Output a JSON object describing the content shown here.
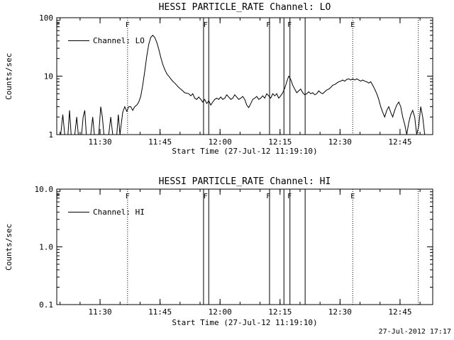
{
  "meta": {
    "timestamp": "27-Jul-2012 17:17",
    "colors": {
      "foreground": "#000000",
      "background": "#ffffff"
    }
  },
  "chart_data": [
    {
      "type": "line",
      "title": "HESSI PARTICLE_RATE Channel: LO",
      "xlabel": "Start Time (27-Jul-12 11:19:10)",
      "ylabel": "Counts/sec",
      "legend": "Channel: LO",
      "yscale": "log",
      "grid": false,
      "legend_position": "top-left",
      "ylim": [
        1,
        100
      ],
      "yticks": [
        {
          "v": 1,
          "label": "1"
        },
        {
          "v": 10,
          "label": "10"
        },
        {
          "v": 100,
          "label": "100"
        }
      ],
      "xlim_minutes": [
        0,
        94
      ],
      "xticks": [
        {
          "t": 10.83,
          "label": "11:30"
        },
        {
          "t": 25.83,
          "label": "11:45"
        },
        {
          "t": 40.83,
          "label": "12:00"
        },
        {
          "t": 55.83,
          "label": "12:15"
        },
        {
          "t": 70.83,
          "label": "12:30"
        },
        {
          "t": 85.83,
          "label": "12:45"
        }
      ],
      "xminor": {
        "start": 0.83,
        "step": 5
      },
      "flags": {
        "letters": [
          {
            "t": 0.3,
            "label": "E"
          },
          {
            "t": 17.7,
            "label": "F"
          },
          {
            "t": 37.2,
            "label": "F"
          },
          {
            "t": 52.9,
            "label": "F"
          },
          {
            "t": 58.2,
            "label": "F"
          },
          {
            "t": 74.0,
            "label": "E"
          }
        ],
        "lines": [
          {
            "t": 17.7,
            "style": "dotted"
          },
          {
            "t": 36.7,
            "style": "solid"
          },
          {
            "t": 38.0,
            "style": "solid"
          },
          {
            "t": 53.2,
            "style": "solid"
          },
          {
            "t": 56.8,
            "style": "solid"
          },
          {
            "t": 58.3,
            "style": "solid"
          },
          {
            "t": 62.1,
            "style": "solid"
          },
          {
            "t": 74.0,
            "style": "dotted"
          },
          {
            "t": 90.4,
            "style": "dotted"
          }
        ]
      },
      "series": [
        {
          "name": "Channel: LO",
          "points": [
            [
              1,
              1
            ],
            [
              1.5,
              2.2
            ],
            [
              2,
              1
            ],
            [
              2.8,
              1
            ],
            [
              3.2,
              2.6
            ],
            [
              3.6,
              1
            ],
            [
              4.5,
              1
            ],
            [
              5,
              2
            ],
            [
              5.4,
              1
            ],
            [
              6.2,
              1
            ],
            [
              6.6,
              2
            ],
            [
              7,
              2.6
            ],
            [
              7.4,
              1
            ],
            [
              8.5,
              1
            ],
            [
              9,
              2
            ],
            [
              9.4,
              1
            ],
            [
              10.5,
              1
            ],
            [
              11,
              3
            ],
            [
              11.4,
              2
            ],
            [
              11.8,
              1
            ],
            [
              13,
              1
            ],
            [
              13.5,
              2
            ],
            [
              14,
              1
            ],
            [
              15,
              1
            ],
            [
              15.4,
              2.2
            ],
            [
              15.8,
              1
            ],
            [
              16.5,
              2.4
            ],
            [
              17,
              3
            ],
            [
              17.5,
              2.5
            ],
            [
              18,
              3
            ],
            [
              18.5,
              3
            ],
            [
              19,
              2.6
            ],
            [
              19.5,
              3
            ],
            [
              20,
              3.2
            ],
            [
              20.5,
              3.6
            ],
            [
              21,
              4.5
            ],
            [
              21.5,
              7
            ],
            [
              22,
              12
            ],
            [
              22.5,
              22
            ],
            [
              23,
              35
            ],
            [
              23.5,
              46
            ],
            [
              24,
              50
            ],
            [
              24.5,
              46
            ],
            [
              25,
              38
            ],
            [
              25.5,
              29
            ],
            [
              26,
              21
            ],
            [
              26.5,
              16
            ],
            [
              27,
              13
            ],
            [
              27.5,
              11
            ],
            [
              28,
              10
            ],
            [
              28.5,
              9
            ],
            [
              29,
              8.2
            ],
            [
              29.5,
              7.6
            ],
            [
              30,
              7
            ],
            [
              30.5,
              6.4
            ],
            [
              31,
              6
            ],
            [
              31.5,
              5.6
            ],
            [
              32,
              5.2
            ],
            [
              33,
              5
            ],
            [
              33.5,
              4.6
            ],
            [
              34,
              5
            ],
            [
              34.5,
              4.2
            ],
            [
              35,
              4
            ],
            [
              35.5,
              4.4
            ],
            [
              36,
              4
            ],
            [
              36.5,
              3.6
            ],
            [
              37,
              4
            ],
            [
              37.5,
              3.4
            ],
            [
              38,
              3.8
            ],
            [
              38.5,
              3.2
            ],
            [
              39,
              3.6
            ],
            [
              39.5,
              4
            ],
            [
              40,
              4.2
            ],
            [
              40.5,
              4
            ],
            [
              41,
              4.4
            ],
            [
              41.5,
              4
            ],
            [
              42,
              4.2
            ],
            [
              42.5,
              4.8
            ],
            [
              43,
              4.4
            ],
            [
              43.5,
              4
            ],
            [
              44,
              4.2
            ],
            [
              44.5,
              4.8
            ],
            [
              45,
              4.4
            ],
            [
              45.5,
              4
            ],
            [
              46,
              4.2
            ],
            [
              46.5,
              4.5
            ],
            [
              47,
              4
            ],
            [
              47.5,
              3.2
            ],
            [
              48,
              2.9
            ],
            [
              48.5,
              3.4
            ],
            [
              49,
              4
            ],
            [
              49.5,
              4.2
            ],
            [
              50,
              4.5
            ],
            [
              50.5,
              4
            ],
            [
              51,
              4.2
            ],
            [
              51.5,
              4.6
            ],
            [
              52,
              4.2
            ],
            [
              52.5,
              5
            ],
            [
              53,
              4.6
            ],
            [
              53.5,
              4.2
            ],
            [
              54,
              5
            ],
            [
              54.5,
              4.6
            ],
            [
              55,
              5
            ],
            [
              55.5,
              4.2
            ],
            [
              56,
              4.6
            ],
            [
              56.5,
              5.2
            ],
            [
              57,
              6.2
            ],
            [
              57.5,
              8
            ],
            [
              58,
              10
            ],
            [
              58.5,
              8.8
            ],
            [
              59,
              7
            ],
            [
              59.5,
              6
            ],
            [
              60,
              5.2
            ],
            [
              60.5,
              5.6
            ],
            [
              61,
              6
            ],
            [
              61.5,
              5.2
            ],
            [
              62,
              4.8
            ],
            [
              62.5,
              5
            ],
            [
              63,
              5.4
            ],
            [
              63.5,
              5
            ],
            [
              64,
              5.2
            ],
            [
              64.5,
              4.8
            ],
            [
              65,
              5
            ],
            [
              65.5,
              5.6
            ],
            [
              66,
              5.2
            ],
            [
              66.5,
              5
            ],
            [
              67,
              5.4
            ],
            [
              67.5,
              5.8
            ],
            [
              68,
              6
            ],
            [
              68.5,
              6.4
            ],
            [
              69,
              7
            ],
            [
              69.5,
              7.2
            ],
            [
              70,
              7.6
            ],
            [
              70.5,
              8
            ],
            [
              71,
              8.2
            ],
            [
              71.5,
              8.6
            ],
            [
              72,
              8.2
            ],
            [
              72.5,
              8.8
            ],
            [
              73,
              9
            ],
            [
              73.5,
              8.6
            ],
            [
              74,
              9
            ],
            [
              74.5,
              8.6
            ],
            [
              75,
              9
            ],
            [
              75.5,
              8.6
            ],
            [
              76,
              8.2
            ],
            [
              76.5,
              8.6
            ],
            [
              77,
              8.2
            ],
            [
              77.5,
              8
            ],
            [
              78,
              7.6
            ],
            [
              78.5,
              8
            ],
            [
              79,
              7
            ],
            [
              79.5,
              6
            ],
            [
              80,
              5
            ],
            [
              80.5,
              4
            ],
            [
              81,
              3
            ],
            [
              81.5,
              2.4
            ],
            [
              82,
              2
            ],
            [
              82.5,
              2.6
            ],
            [
              83,
              3
            ],
            [
              83.5,
              2.4
            ],
            [
              84,
              2
            ],
            [
              84.5,
              2.6
            ],
            [
              85,
              3.2
            ],
            [
              85.5,
              3.6
            ],
            [
              86,
              3
            ],
            [
              86.5,
              2
            ],
            [
              87,
              1.5
            ],
            [
              87.5,
              1
            ],
            [
              88,
              1.6
            ],
            [
              88.5,
              2.2
            ],
            [
              89,
              2.6
            ],
            [
              89.5,
              2
            ],
            [
              90,
              1
            ],
            [
              90.5,
              1.4
            ],
            [
              91,
              3
            ],
            [
              91.5,
              2
            ],
            [
              92,
              1
            ],
            [
              92.8,
              1
            ]
          ]
        }
      ]
    },
    {
      "type": "line",
      "title": "HESSI PARTICLE_RATE Channel: HI",
      "xlabel": "Start Time (27-Jul-12 11:19:10)",
      "ylabel": "Counts/sec",
      "legend": "Channel: HI",
      "yscale": "log",
      "grid": false,
      "legend_position": "top-left",
      "ylim": [
        0.1,
        10
      ],
      "yticks": [
        {
          "v": 0.1,
          "label": "0.1"
        },
        {
          "v": 1,
          "label": "1.0"
        },
        {
          "v": 10,
          "label": "10.0"
        }
      ],
      "xlim_minutes": [
        0,
        94
      ],
      "xticks": [
        {
          "t": 10.83,
          "label": "11:30"
        },
        {
          "t": 25.83,
          "label": "11:45"
        },
        {
          "t": 40.83,
          "label": "12:00"
        },
        {
          "t": 55.83,
          "label": "12:15"
        },
        {
          "t": 70.83,
          "label": "12:30"
        },
        {
          "t": 85.83,
          "label": "12:45"
        }
      ],
      "xminor": {
        "start": 0.83,
        "step": 5
      },
      "flags": {
        "letters": [
          {
            "t": 0.3,
            "label": "E"
          },
          {
            "t": 17.7,
            "label": "F"
          },
          {
            "t": 37.2,
            "label": "F"
          },
          {
            "t": 52.9,
            "label": "F"
          },
          {
            "t": 58.2,
            "label": "F"
          },
          {
            "t": 74.0,
            "label": "E"
          }
        ],
        "lines": [
          {
            "t": 17.7,
            "style": "dotted"
          },
          {
            "t": 36.7,
            "style": "solid"
          },
          {
            "t": 38.0,
            "style": "solid"
          },
          {
            "t": 53.2,
            "style": "solid"
          },
          {
            "t": 56.8,
            "style": "solid"
          },
          {
            "t": 58.3,
            "style": "solid"
          },
          {
            "t": 62.1,
            "style": "solid"
          },
          {
            "t": 74.0,
            "style": "dotted"
          },
          {
            "t": 90.4,
            "style": "dotted"
          }
        ]
      },
      "series": [
        {
          "name": "Channel: HI",
          "points": []
        }
      ]
    }
  ]
}
